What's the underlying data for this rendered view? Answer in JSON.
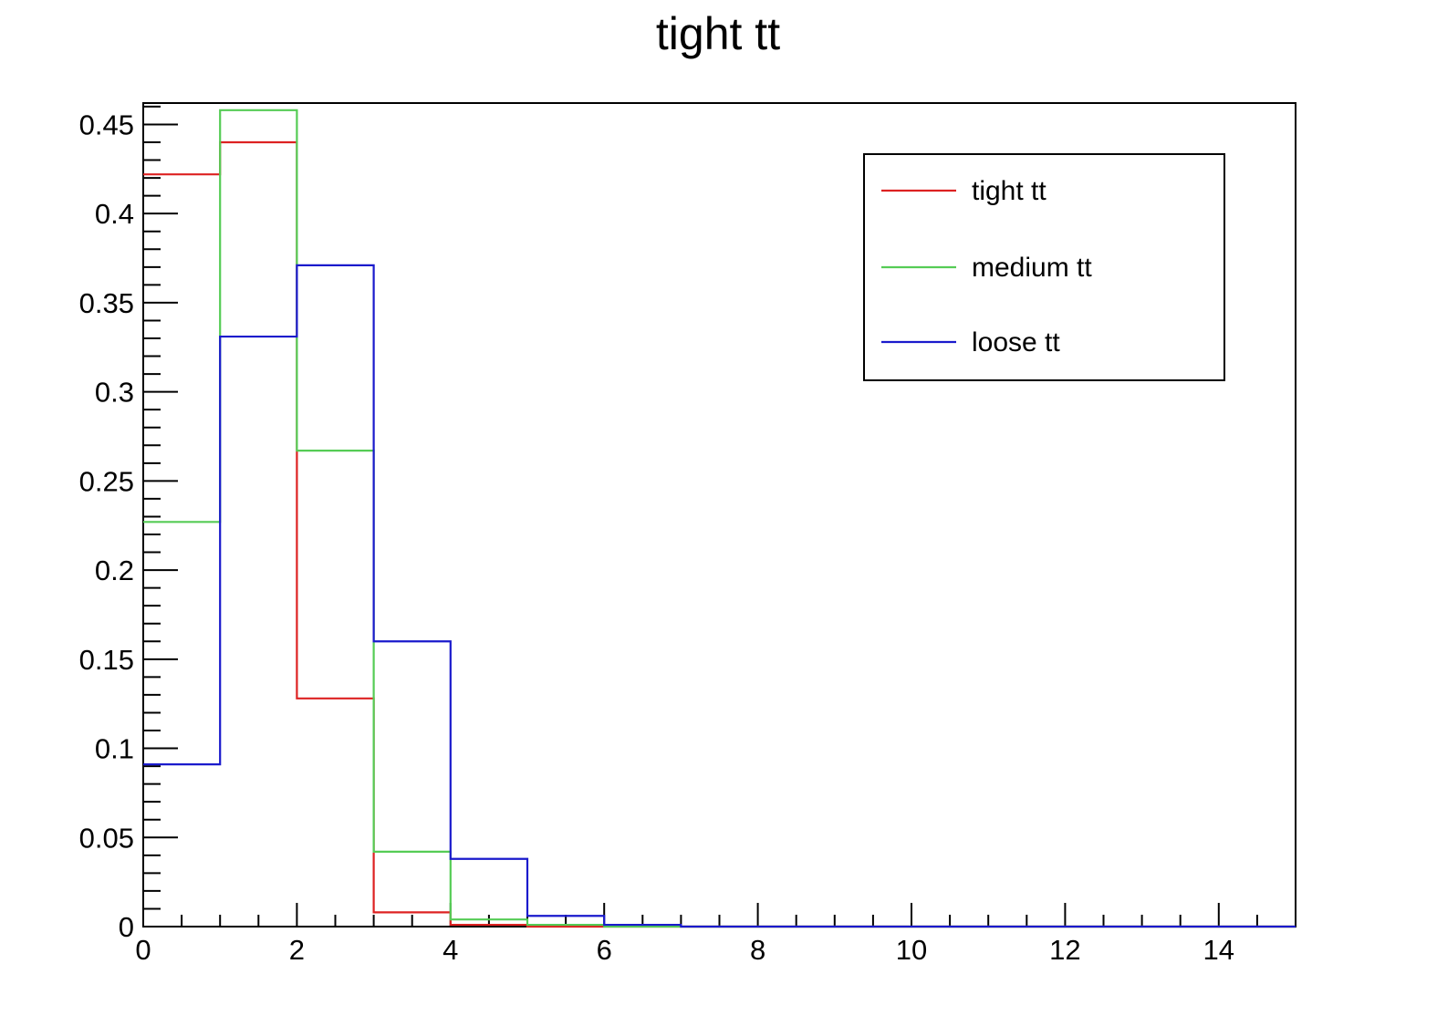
{
  "chart_data": {
    "type": "histogram",
    "title": "tight tt",
    "xlabel": "",
    "ylabel": "",
    "xlim": [
      0,
      15
    ],
    "ylim": [
      0,
      0.462
    ],
    "x_ticks": [
      0,
      2,
      4,
      6,
      8,
      10,
      12,
      14
    ],
    "y_ticks": [
      0,
      0.05,
      0.1,
      0.15,
      0.2,
      0.25,
      0.3,
      0.35,
      0.4,
      0.45
    ],
    "x_tick_labels": [
      "0",
      "2",
      "4",
      "6",
      "8",
      "10",
      "12",
      "14"
    ],
    "y_tick_labels": [
      "0",
      "0.05",
      "0.1",
      "0.15",
      "0.2",
      "0.25",
      "0.3",
      "0.35",
      "0.4",
      "0.45"
    ],
    "bin_edges": [
      0,
      1,
      2,
      3,
      4,
      5,
      6,
      7,
      8,
      9,
      10,
      11,
      12,
      13,
      14,
      15
    ],
    "series": [
      {
        "name": "tight tt",
        "color": "#dd2222",
        "values": [
          0.422,
          0.44,
          0.128,
          0.008,
          0.001,
          0,
          0,
          0,
          0,
          0,
          0,
          0,
          0,
          0,
          0
        ]
      },
      {
        "name": "medium tt",
        "color": "#55cc55",
        "values": [
          0.227,
          0.458,
          0.267,
          0.042,
          0.004,
          0.001,
          0,
          0,
          0,
          0,
          0,
          0,
          0,
          0,
          0
        ]
      },
      {
        "name": "loose tt",
        "color": "#1a1acc",
        "values": [
          0.091,
          0.331,
          0.371,
          0.16,
          0.038,
          0.006,
          0.001,
          0,
          0,
          0,
          0,
          0,
          0,
          0,
          0
        ]
      }
    ],
    "grid": false,
    "legend_position": "top-right"
  }
}
